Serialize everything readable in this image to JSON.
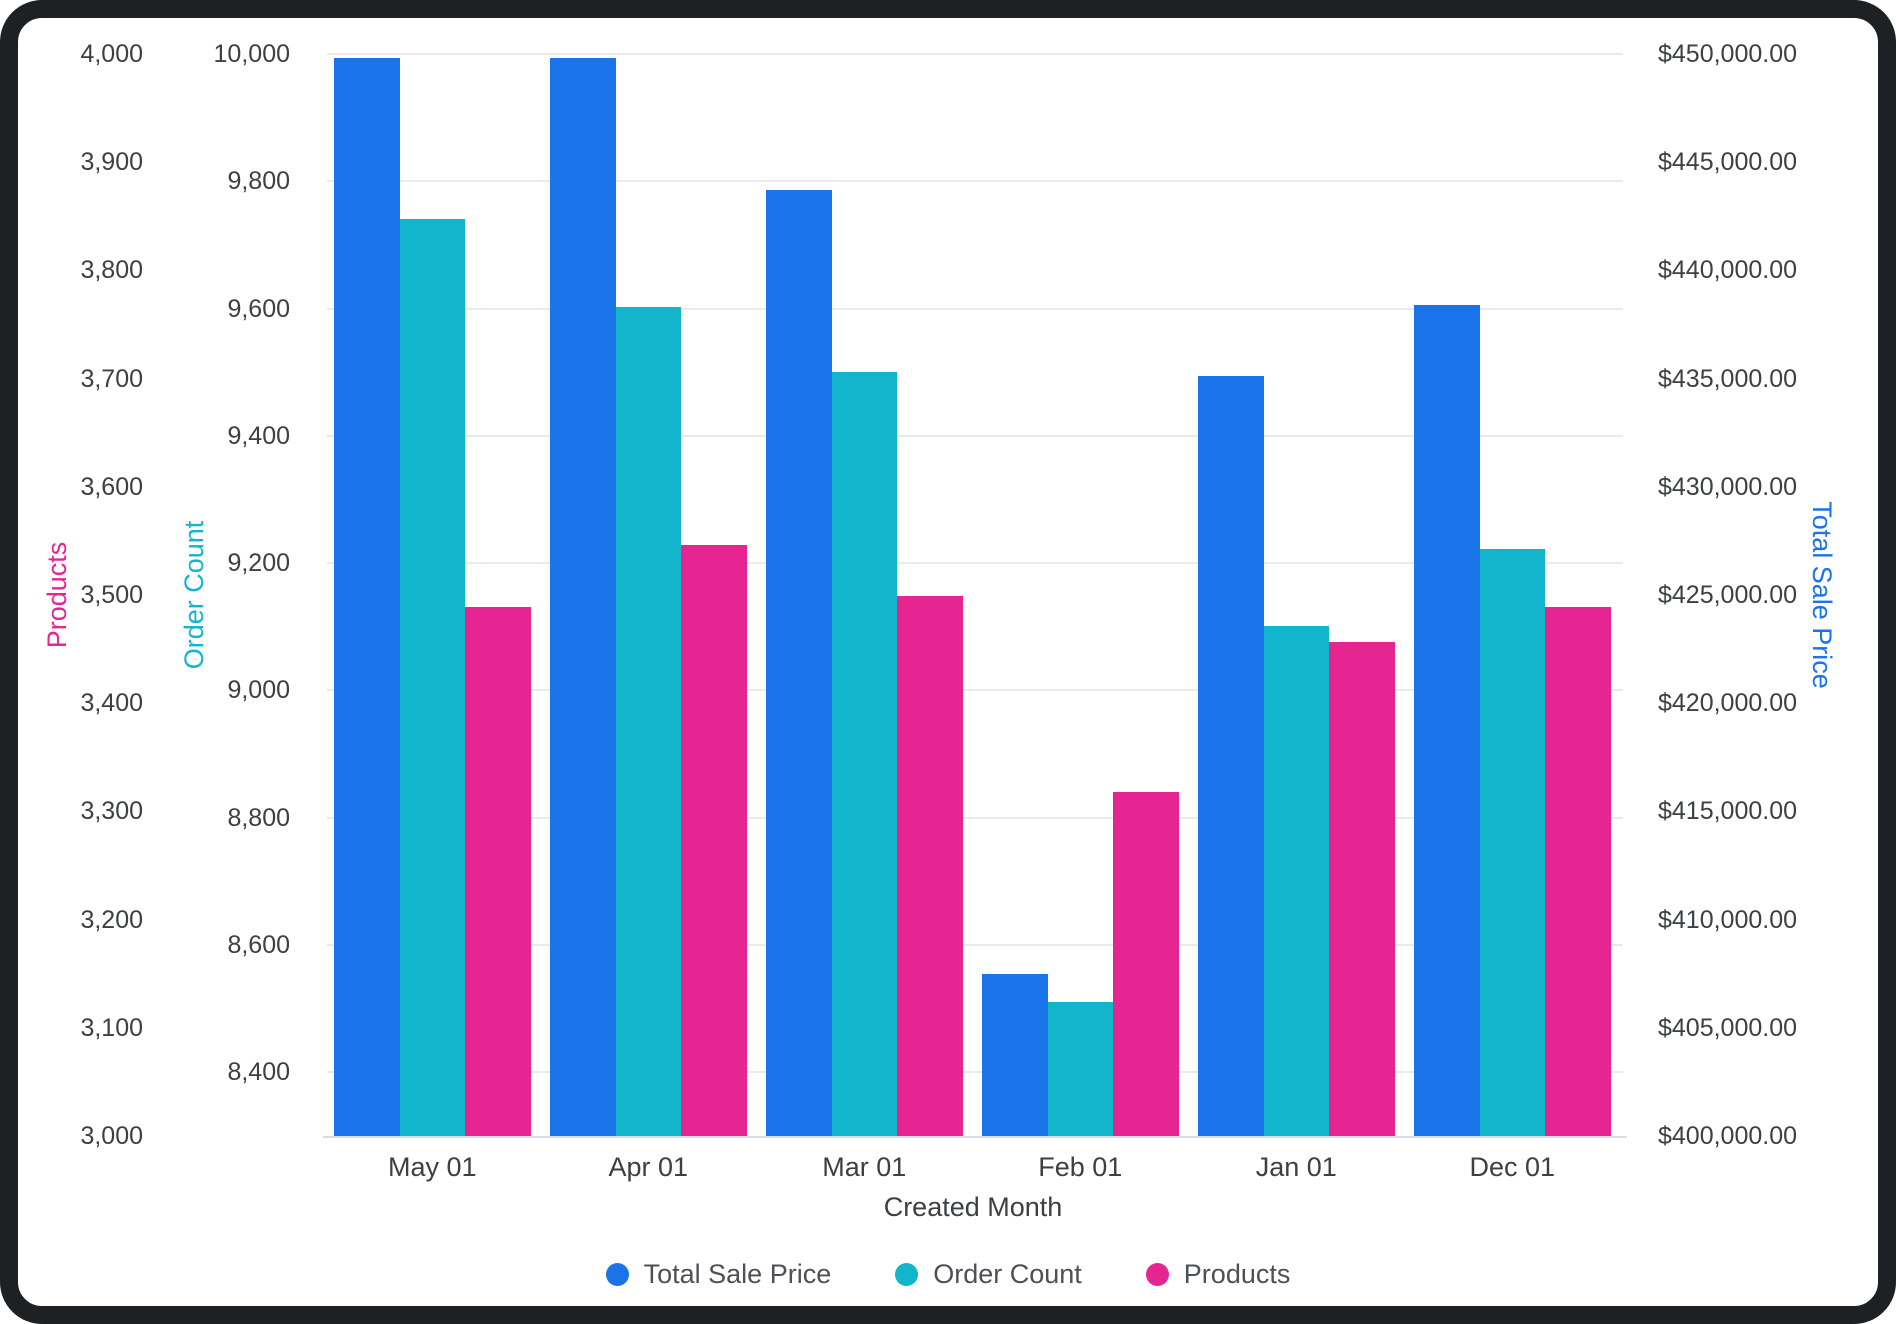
{
  "chart_data": {
    "type": "bar",
    "title": "",
    "xlabel": "Created Month",
    "grid": "horizontal gridlines aligned to Order Count ticks, legend bottom-center",
    "categories": [
      "May 01",
      "Apr 01",
      "Mar 01",
      "Feb 01",
      "Jan 01",
      "Dec 01"
    ],
    "series": [
      {
        "name": "Total Sale Price",
        "axis": "price",
        "color": "#1a73e8",
        "values": [
          449800,
          449800,
          443700,
          407500,
          435100,
          438400
        ]
      },
      {
        "name": "Order Count",
        "axis": "orders",
        "color": "#12b5cb",
        "values": [
          9741,
          9603,
          9500,
          8511,
          9102,
          9223
        ]
      },
      {
        "name": "Products",
        "axis": "products",
        "color": "#e52592",
        "values": [
          3489,
          3546,
          3499,
          3318,
          3457,
          3489
        ]
      }
    ],
    "axes": {
      "products": {
        "title": "Products",
        "color": "#e52592",
        "side": "outer-left",
        "min": 3000,
        "max": 4000,
        "ticks": [
          {
            "v": 4000,
            "label": "4,000"
          },
          {
            "v": 3900,
            "label": "3,900"
          },
          {
            "v": 3800,
            "label": "3,800"
          },
          {
            "v": 3700,
            "label": "3,700"
          },
          {
            "v": 3600,
            "label": "3,600"
          },
          {
            "v": 3500,
            "label": "3,500"
          },
          {
            "v": 3400,
            "label": "3,400"
          },
          {
            "v": 3300,
            "label": "3,300"
          },
          {
            "v": 3200,
            "label": "3,200"
          },
          {
            "v": 3100,
            "label": "3,100"
          },
          {
            "v": 3000,
            "label": "3,000"
          }
        ]
      },
      "orders": {
        "title": "Order Count",
        "color": "#12b5cb",
        "side": "inner-left",
        "min": 8300,
        "max": 10000,
        "ticks": [
          {
            "v": 10000,
            "label": "10,000"
          },
          {
            "v": 9800,
            "label": "9,800"
          },
          {
            "v": 9600,
            "label": "9,600"
          },
          {
            "v": 9400,
            "label": "9,400"
          },
          {
            "v": 9200,
            "label": "9,200"
          },
          {
            "v": 9000,
            "label": "9,000"
          },
          {
            "v": 8800,
            "label": "8,800"
          },
          {
            "v": 8600,
            "label": "8,600"
          },
          {
            "v": 8400,
            "label": "8,400"
          }
        ]
      },
      "price": {
        "title": "Total Sale Price",
        "color": "#1a73e8",
        "side": "right",
        "min": 400000,
        "max": 450000,
        "ticks": [
          {
            "v": 450000,
            "label": "$450,000.00"
          },
          {
            "v": 445000,
            "label": "$445,000.00"
          },
          {
            "v": 440000,
            "label": "$440,000.00"
          },
          {
            "v": 435000,
            "label": "$435,000.00"
          },
          {
            "v": 430000,
            "label": "$430,000.00"
          },
          {
            "v": 425000,
            "label": "$425,000.00"
          },
          {
            "v": 420000,
            "label": "$420,000.00"
          },
          {
            "v": 415000,
            "label": "$415,000.00"
          },
          {
            "v": 410000,
            "label": "$410,000.00"
          },
          {
            "v": 405000,
            "label": "$405,000.00"
          },
          {
            "v": 400000,
            "label": "$400,000.00"
          }
        ]
      }
    },
    "legend": [
      "Total Sale Price",
      "Order Count",
      "Products"
    ]
  }
}
